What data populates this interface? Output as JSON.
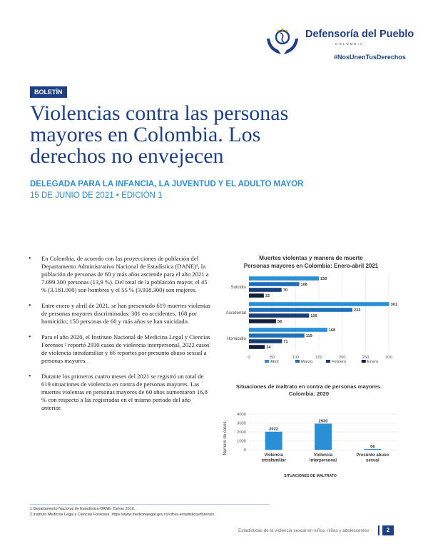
{
  "header": {
    "logo_name": "Defensoría del Pueblo",
    "logo_country": "COLOMBIA",
    "hashtag": "#NosUnenTusDerechos",
    "colors": {
      "primary": "#1d3f86",
      "accent": "#2b8fd6"
    }
  },
  "document": {
    "tag": "BOLETÍN",
    "title_lines": [
      "Violencias contra las personas",
      "mayores en Colombia. Los",
      "derechos no envejecen"
    ],
    "delegada": "DELEGADA PARA LA INFANCIA, LA JUVENTUD Y EL ADULTO MAYOR",
    "fecha": "15 DE JUNIO DE 2021 • EDICIÓN 1"
  },
  "bullets": [
    "En Colombia, de acuerdo con las proyecciones de población del Departamento Administrativo Nacional de Estadística (DANE)¹, la población de personas de 60 y más años asciende para el año 2021 a 7.099.300 personas (13,9 %). Del total de la población mayor, el 45 % (3.181.000) son hombres y el 55 % (3.918.300) son mujeres.",
    "Entre enero y abril de 2021, se han presentado 619 muertes violentas de personas mayores discriminadas: 301 en accidentes, 168 por homicidio; 150 personas de 60 y más años se han suicidado.",
    "Para el año 2020, el Instituto Nacional de Medicina Legal y Ciencias Forenses ² reportó 2930 casos de violencia interpersonal, 2022 casos de violencia intrafamiliar y 66 reportes por presunto abuso sexual a personas mayores.",
    "Durante los primeros cuatro meses del 2021 se registró un total de 619 situaciones de violencia en contra de personas mayores. Las muertes violentas en personas mayores de 60 años aumentaron 16,8 % con respecto a las registradas en el mismo periodo del año anterior."
  ],
  "chart_data": [
    {
      "type": "bar",
      "orientation": "horizontal",
      "title": "Muertes violentas y manera de muerte",
      "subtitle": "Personas mayores en Colombia: Enero-abril 2021",
      "categories": [
        "Suicidio",
        "Accidental",
        "Homicidio"
      ],
      "series": [
        {
          "name": "Abril",
          "color": "#2b8fd6",
          "values": [
            150,
            301,
            168
          ]
        },
        {
          "name": "Marzo",
          "color": "#1e6fb8",
          "values": [
            108,
            222,
            119
          ]
        },
        {
          "name": "Febrero",
          "color": "#163f7a",
          "values": [
            70,
            129,
            71
          ]
        },
        {
          "name": "Enero",
          "color": "#14213d",
          "values": [
            32,
            58,
            34
          ]
        }
      ],
      "xlim": [
        0,
        300
      ],
      "xticks": [
        0,
        50,
        100,
        150,
        200,
        250,
        300
      ],
      "grid": true,
      "legend": "bottom"
    },
    {
      "type": "bar",
      "title": "Situaciones de maltrato en contra de personas mayores.",
      "subtitle": "Colombia: 2020",
      "categories": [
        "Violencia intrafamiliar",
        "Violencia interpersonal",
        "Presunto abuso sexual"
      ],
      "values": [
        2022,
        2930,
        66
      ],
      "ylabel": "Número de casos",
      "xlabel": "SITUACIONES DE MALTRATO",
      "ylim": [
        0,
        4000
      ],
      "yticks": [
        0,
        1000,
        2000,
        3000,
        4000
      ],
      "color": "#2b8fd6",
      "grid": true
    }
  ],
  "footnotes": [
    "1   Departamento Nacional de Estadística-DANE- Censo 2018.",
    "2  Instituto Medicina Legal y Ciencias Forenses. https://www.medicinalegal.gov.co/cifras-estadisticas/forensis"
  ],
  "footer": {
    "text": "Estadísticas de la violencia sexual en niños, niñas y adolescentes",
    "page": "2"
  }
}
